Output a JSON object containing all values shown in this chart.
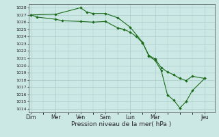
{
  "xlabel": "Pression niveau de la mer( hPa )",
  "bg_color": "#cce8e4",
  "grid_color": "#aaccca",
  "line_color": "#1a6b1a",
  "ylim": [
    1013.5,
    1028.5
  ],
  "yticks": [
    1014,
    1015,
    1016,
    1017,
    1018,
    1019,
    1020,
    1021,
    1022,
    1023,
    1024,
    1025,
    1026,
    1027,
    1028
  ],
  "xtick_labels": [
    "Dim",
    "Mer",
    "Ven",
    "Sam",
    "Lun",
    "Mar",
    "Jeu"
  ],
  "xtick_positions": [
    0,
    2,
    4,
    6,
    8,
    10,
    14
  ],
  "xlim": [
    -0.2,
    14.8
  ],
  "line1_x": [
    0,
    2,
    4,
    4.5,
    5,
    6,
    7,
    8,
    9,
    9.5,
    10,
    10.5,
    11,
    11.5,
    12,
    12.5,
    13,
    14
  ],
  "line1_y": [
    1027.0,
    1027.1,
    1028.0,
    1027.4,
    1027.2,
    1027.2,
    1026.6,
    1025.3,
    1023.2,
    1021.3,
    1020.7,
    1019.3,
    1015.9,
    1015.2,
    1014.1,
    1015.0,
    1016.5,
    1018.2
  ],
  "line2_x": [
    0,
    0.5,
    2,
    2.5,
    4,
    5,
    6,
    7,
    7.5,
    8,
    8.5,
    9,
    9.5,
    10,
    10.5,
    11,
    11.5,
    12,
    12.5,
    13,
    14
  ],
  "line2_y": [
    1027.0,
    1026.7,
    1026.4,
    1026.2,
    1026.1,
    1026.0,
    1026.1,
    1025.2,
    1025.0,
    1024.6,
    1024.0,
    1023.1,
    1021.4,
    1020.9,
    1019.7,
    1019.1,
    1018.7,
    1018.2,
    1017.9,
    1018.5,
    1018.2
  ]
}
